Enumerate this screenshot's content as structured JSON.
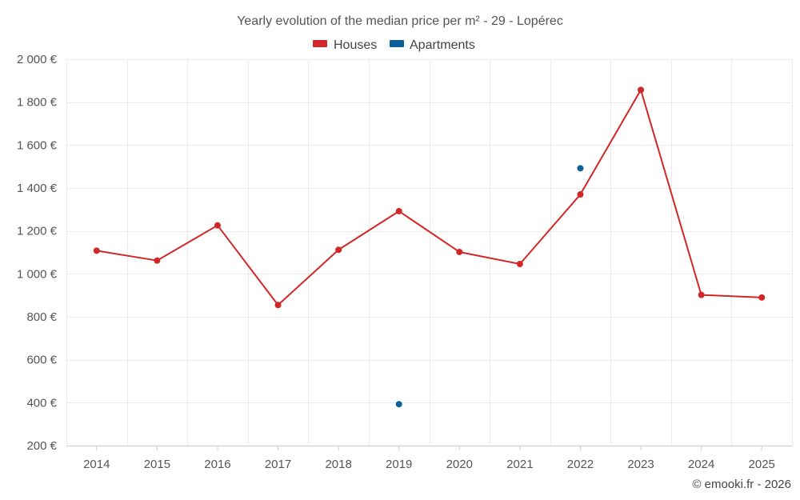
{
  "chart_data": {
    "type": "line",
    "title": "Yearly evolution of the median price per m² - 29 - Lopérec",
    "categories": [
      "2014",
      "2015",
      "2016",
      "2017",
      "2018",
      "2019",
      "2020",
      "2021",
      "2022",
      "2023",
      "2024",
      "2025"
    ],
    "series": [
      {
        "name": "Houses",
        "color": "#d32626",
        "values": [
          1108,
          1062,
          1226,
          855,
          1112,
          1292,
          1102,
          1046,
          1370,
          1857,
          902,
          890
        ]
      },
      {
        "name": "Apartments",
        "color": "#0a6097",
        "values": [
          null,
          null,
          null,
          null,
          null,
          393,
          null,
          null,
          1492,
          null,
          null,
          null
        ]
      }
    ],
    "y_ticks": [
      "200 €",
      "400 €",
      "600 €",
      "800 €",
      "1 000 €",
      "1 200 €",
      "1 400 €",
      "1 600 €",
      "1 800 €",
      "2 000 €"
    ],
    "y_tick_values": [
      200,
      400,
      600,
      800,
      1000,
      1200,
      1400,
      1600,
      1800,
      2000
    ],
    "ylim": [
      200,
      2000
    ],
    "xlabel": "",
    "ylabel": "",
    "grid": true,
    "legend_position": "top-center"
  },
  "credit": "© emooki.fr - 2026"
}
